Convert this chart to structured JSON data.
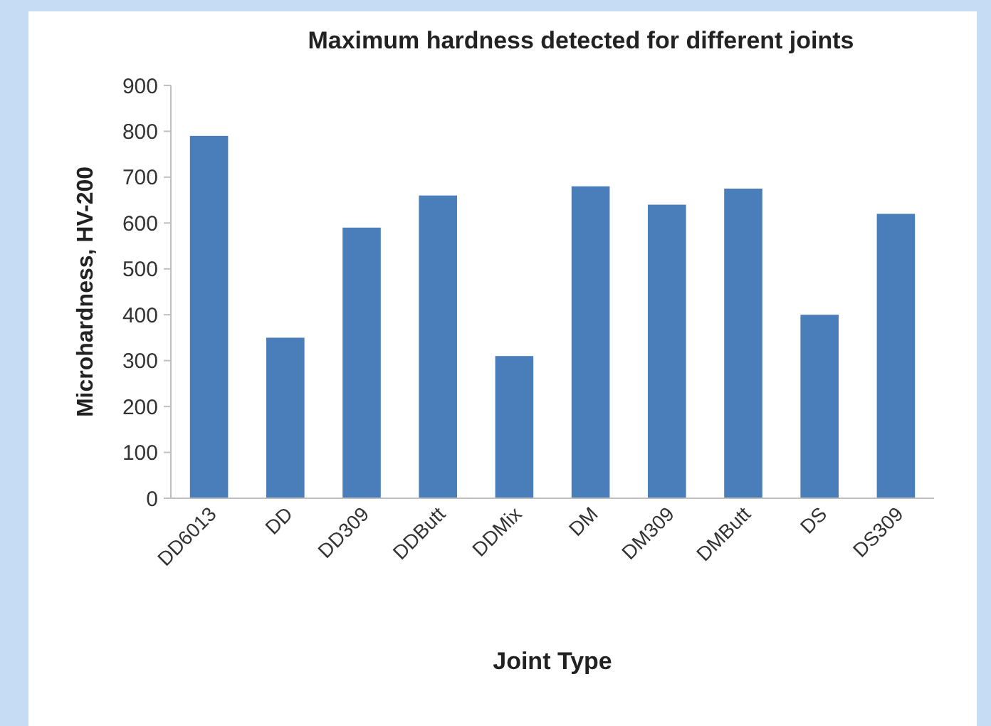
{
  "chart_data": {
    "type": "bar",
    "title": "Maximum hardness detected for different joints",
    "xlabel": "Joint Type",
    "ylabel": "Microhardness, HV-200",
    "categories": [
      "DD6013",
      "DD",
      "DD309",
      "DDButt",
      "DDMix",
      "DM",
      "DM309",
      "DMButt",
      "DS",
      "DS309"
    ],
    "values": [
      790,
      350,
      590,
      660,
      310,
      680,
      640,
      675,
      400,
      620
    ],
    "color": "#4a7ebb",
    "ylim": [
      0,
      900
    ],
    "yticks": [
      0,
      100,
      200,
      300,
      400,
      500,
      600,
      700,
      800,
      900
    ],
    "grid": false
  }
}
